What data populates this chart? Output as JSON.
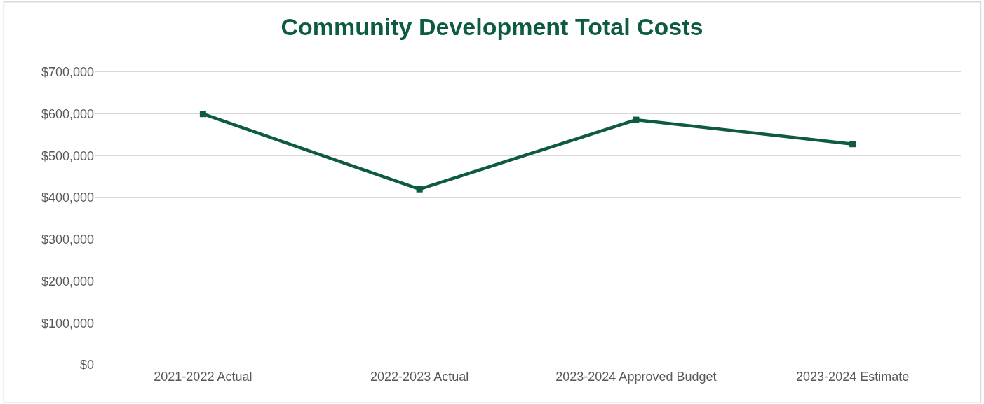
{
  "chart_data": {
    "type": "line",
    "title": "Community Development Total Costs",
    "categories": [
      "2021-2022 Actual",
      "2022-2023 Actual",
      "2023-2024 Approved Budget",
      "2023-2024 Estimate"
    ],
    "series": [
      {
        "color": "#0e5c3f",
        "values": [
          600000,
          420000,
          586000,
          528000
        ]
      }
    ],
    "ylim": [
      0,
      700000
    ],
    "yticks": [
      {
        "value": 0,
        "label": "$0"
      },
      {
        "value": 100000,
        "label": "$100,000"
      },
      {
        "value": 200000,
        "label": "$200,000"
      },
      {
        "value": 300000,
        "label": "$300,000"
      },
      {
        "value": 400000,
        "label": "$400,000"
      },
      {
        "value": 500000,
        "label": "$500,000"
      },
      {
        "value": 600000,
        "label": "$600,000"
      },
      {
        "value": 700000,
        "label": "$700,000"
      }
    ],
    "grid": "y",
    "marker": "square",
    "line_style": "solid"
  }
}
